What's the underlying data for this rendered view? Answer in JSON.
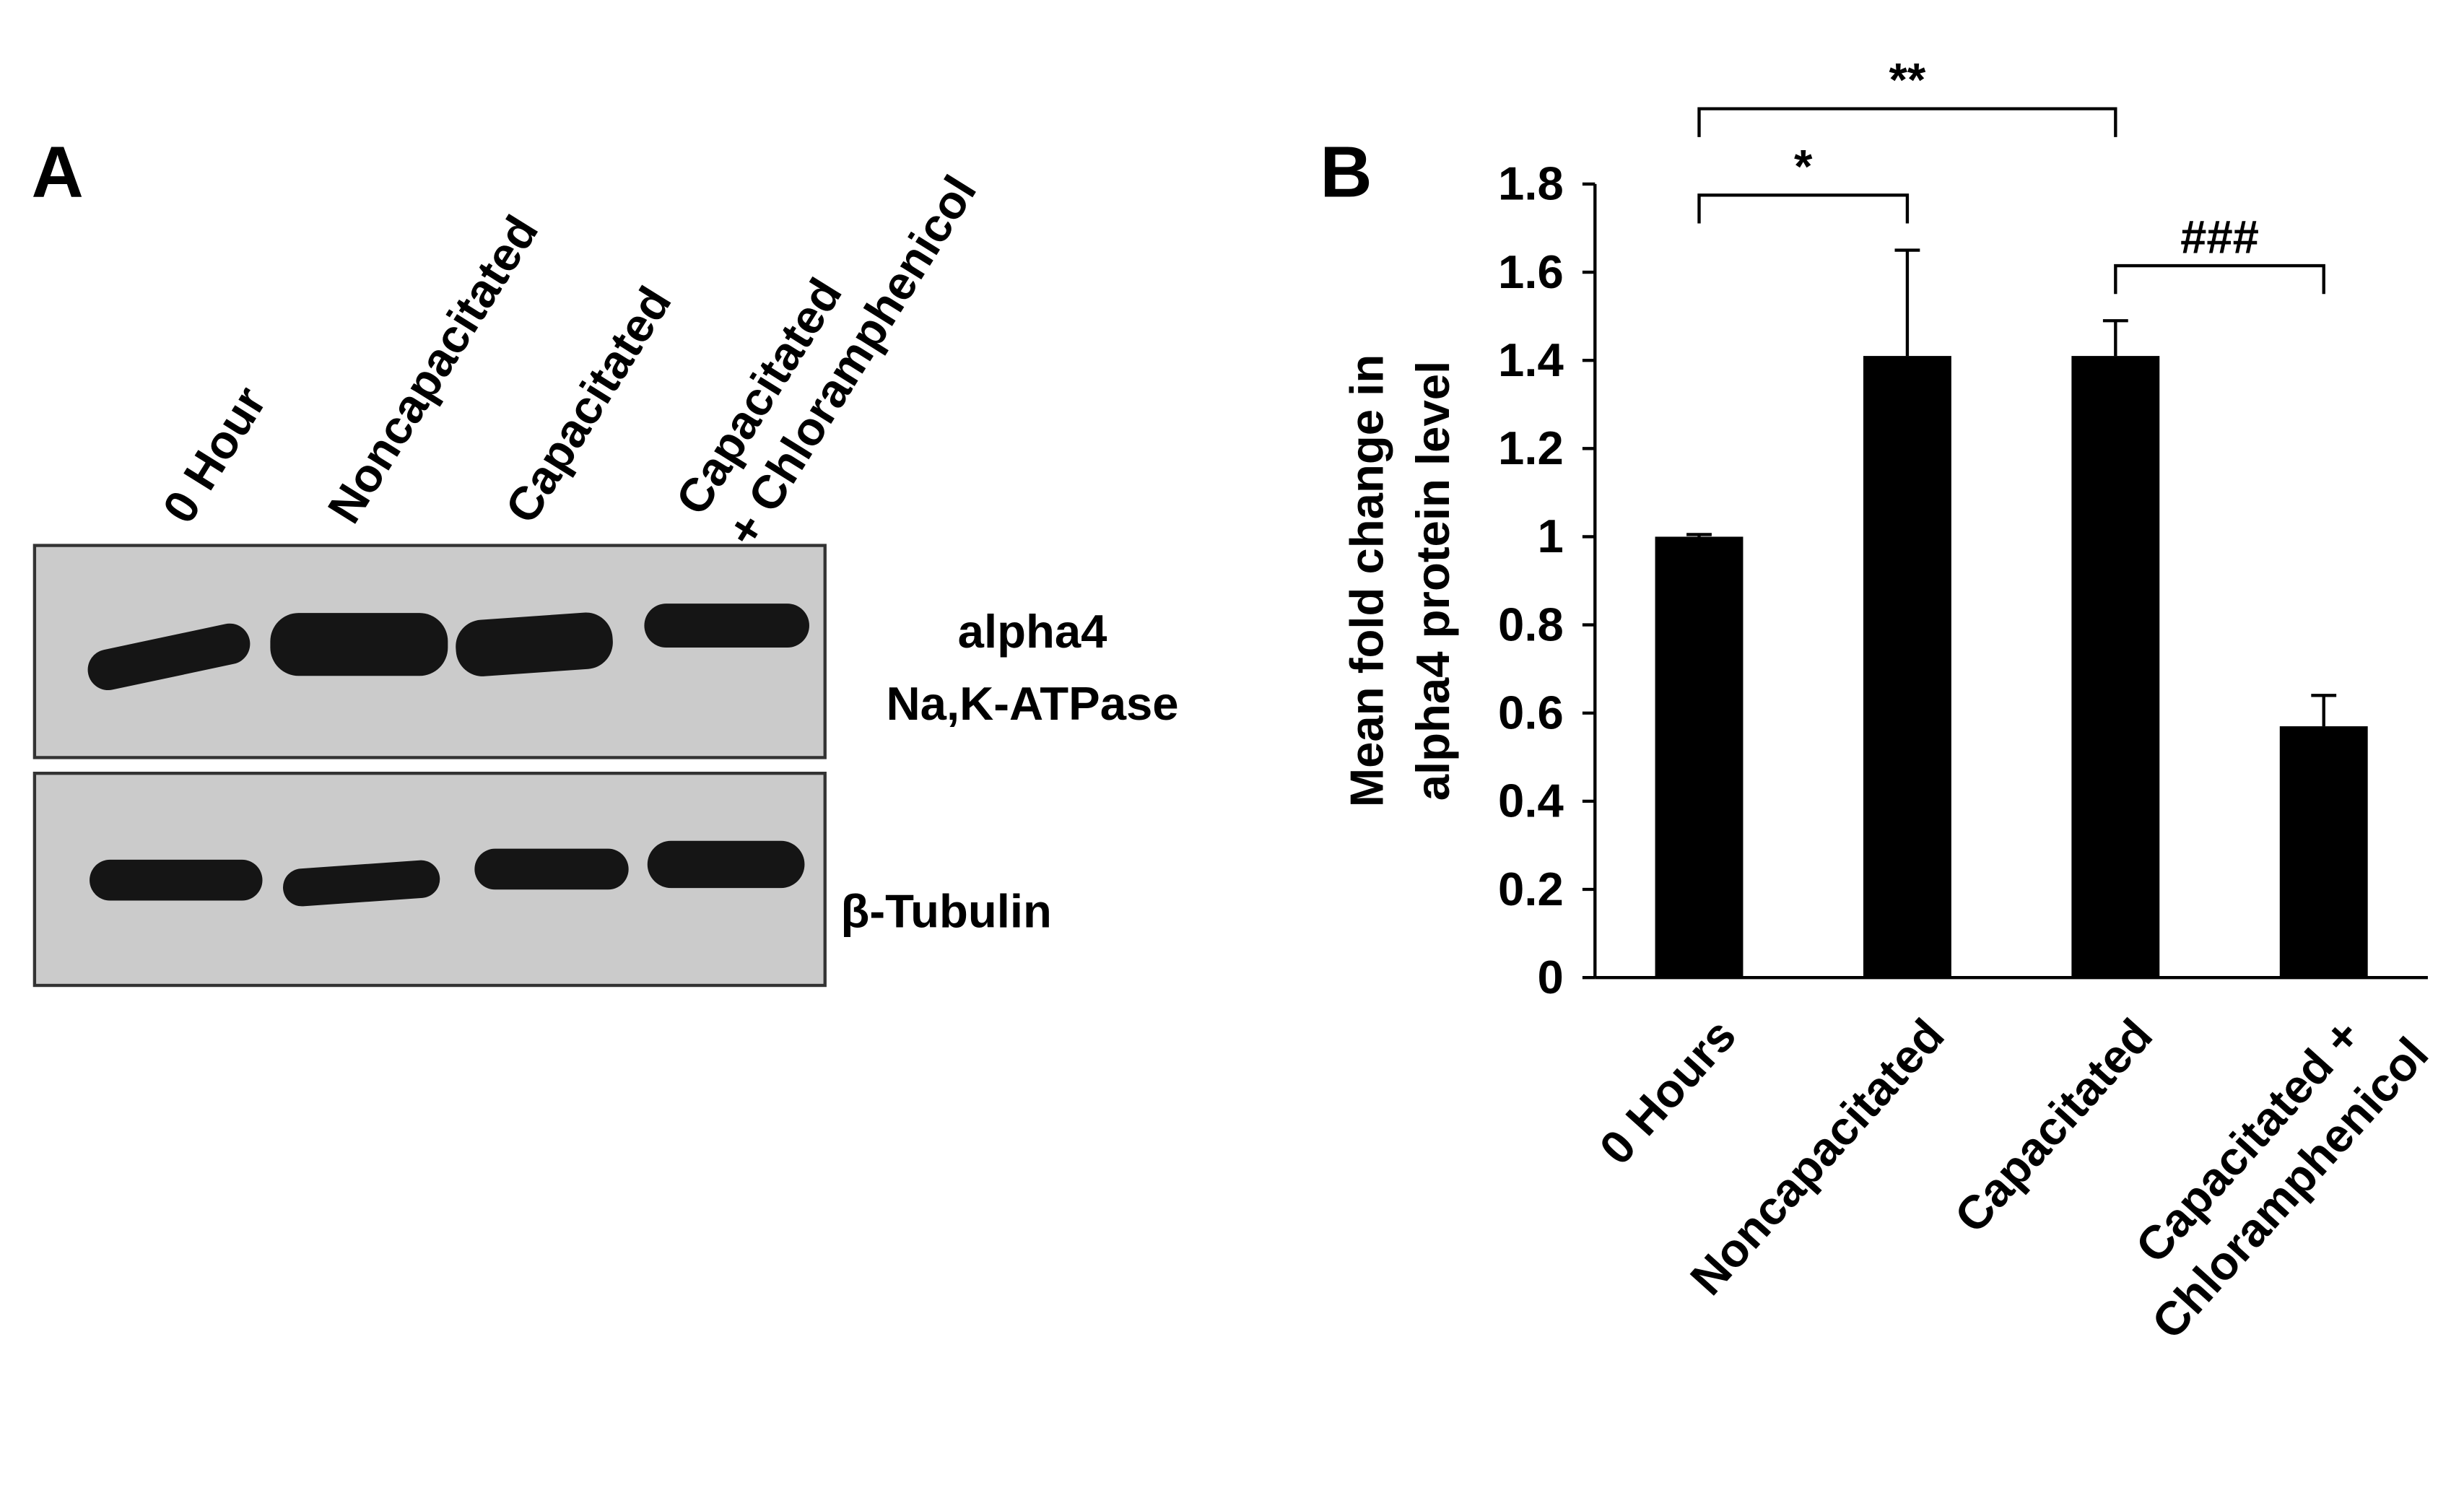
{
  "panel_a": {
    "label": "A",
    "lanes": [
      "0 Hour",
      "Noncapacitated",
      "Capacitated",
      "Capacitated\n+ Chloramphenicol"
    ],
    "blots": [
      "alpha4\nNa,K-ATPase",
      "β-Tubulin"
    ]
  },
  "chart_data": {
    "type": "bar",
    "label": "B",
    "y_label": "Mean fold change in\nalpha4 protein level",
    "categories": [
      "0 Hours",
      "Noncapacitated",
      "Capacitated",
      "Capacitated +\nChloramphenicol"
    ],
    "values": [
      1.0,
      1.41,
      1.41,
      0.57
    ],
    "errors": [
      0.005,
      0.24,
      0.08,
      0.07
    ],
    "color": "#000000",
    "ylim": [
      0,
      1.8
    ],
    "yticks": [
      0,
      0.2,
      0.4,
      0.6,
      0.8,
      1,
      1.2,
      1.4,
      1.6,
      1.8
    ],
    "annotations": [
      {
        "text": "*",
        "from": 0,
        "to": 1
      },
      {
        "text": "**",
        "from": 0,
        "to": 2
      },
      {
        "text": "###",
        "from": 2,
        "to": 3
      }
    ]
  }
}
